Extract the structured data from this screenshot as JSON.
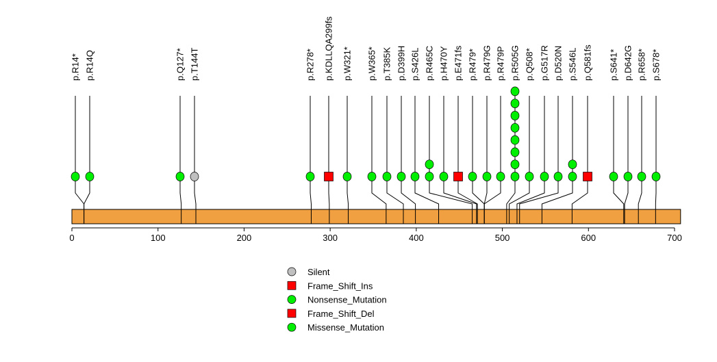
{
  "chart_data": {
    "type": "lollipop",
    "xlim": [
      0,
      707
    ],
    "xticks": [
      0,
      100,
      200,
      300,
      400,
      500,
      600,
      700
    ],
    "protein_length": 707,
    "colors": {
      "Silent": "#c0c0c0",
      "Frame_Shift_Ins": "#ff0000",
      "Nonsense_Mutation": "#00ee00",
      "Frame_Shift_Del": "#ff0000",
      "Missense_Mutation": "#00ee00",
      "domain_bar": "#f0a040"
    },
    "legend": [
      {
        "label": "Silent",
        "shape": "circle",
        "type": "Silent"
      },
      {
        "label": "Frame_Shift_Ins",
        "shape": "square",
        "type": "Frame_Shift_Ins"
      },
      {
        "label": "Nonsense_Mutation",
        "shape": "circle",
        "type": "Nonsense_Mutation"
      },
      {
        "label": "Frame_Shift_Del",
        "shape": "square",
        "type": "Frame_Shift_Del"
      },
      {
        "label": "Missense_Mutation",
        "shape": "circle",
        "type": "Missense_Mutation"
      }
    ],
    "mutations": [
      {
        "label": "p.R14*",
        "pos": 14,
        "count": 1,
        "type": "Nonsense_Mutation"
      },
      {
        "label": "p.R14Q",
        "pos": 14,
        "count": 1,
        "type": "Missense_Mutation"
      },
      {
        "label": "p.Q127*",
        "pos": 127,
        "count": 1,
        "type": "Nonsense_Mutation"
      },
      {
        "label": "p.T144T",
        "pos": 144,
        "count": 1,
        "type": "Silent"
      },
      {
        "label": "p.R278*",
        "pos": 278,
        "count": 1,
        "type": "Nonsense_Mutation"
      },
      {
        "label": "p.KDLLQA299fs",
        "pos": 299,
        "count": 1,
        "type": "Frame_Shift_Ins"
      },
      {
        "label": "p.W321*",
        "pos": 321,
        "count": 1,
        "type": "Nonsense_Mutation"
      },
      {
        "label": "p.W365*",
        "pos": 365,
        "count": 1,
        "type": "Nonsense_Mutation"
      },
      {
        "label": "p.T385K",
        "pos": 385,
        "count": 1,
        "type": "Missense_Mutation"
      },
      {
        "label": "p.D399H",
        "pos": 399,
        "count": 1,
        "type": "Missense_Mutation"
      },
      {
        "label": "p.S426L",
        "pos": 426,
        "count": 1,
        "type": "Missense_Mutation"
      },
      {
        "label": "p.R465C",
        "pos": 465,
        "count": 2,
        "type": "Missense_Mutation"
      },
      {
        "label": "p.H470Y",
        "pos": 470,
        "count": 1,
        "type": "Missense_Mutation"
      },
      {
        "label": "p.E471fs",
        "pos": 471,
        "count": 1,
        "type": "Frame_Shift_Del"
      },
      {
        "label": "p.R479*",
        "pos": 479,
        "count": 1,
        "type": "Nonsense_Mutation"
      },
      {
        "label": "p.R479G",
        "pos": 479,
        "count": 1,
        "type": "Missense_Mutation"
      },
      {
        "label": "p.R479P",
        "pos": 479,
        "count": 1,
        "type": "Missense_Mutation"
      },
      {
        "label": "p.R505G",
        "pos": 505,
        "count": 8,
        "type": "Missense_Mutation"
      },
      {
        "label": "p.Q508*",
        "pos": 508,
        "count": 1,
        "type": "Nonsense_Mutation"
      },
      {
        "label": "p.G517R",
        "pos": 517,
        "count": 1,
        "type": "Missense_Mutation"
      },
      {
        "label": "p.D520N",
        "pos": 520,
        "count": 1,
        "type": "Missense_Mutation"
      },
      {
        "label": "p.S546L",
        "pos": 546,
        "count": 2,
        "type": "Missense_Mutation"
      },
      {
        "label": "p.Q581fs",
        "pos": 581,
        "count": 1,
        "type": "Frame_Shift_Del"
      },
      {
        "label": "p.S641*",
        "pos": 641,
        "count": 1,
        "type": "Nonsense_Mutation"
      },
      {
        "label": "p.D642G",
        "pos": 642,
        "count": 1,
        "type": "Missense_Mutation"
      },
      {
        "label": "p.R658*",
        "pos": 658,
        "count": 1,
        "type": "Nonsense_Mutation"
      },
      {
        "label": "p.S678*",
        "pos": 678,
        "count": 1,
        "type": "Nonsense_Mutation"
      }
    ]
  }
}
